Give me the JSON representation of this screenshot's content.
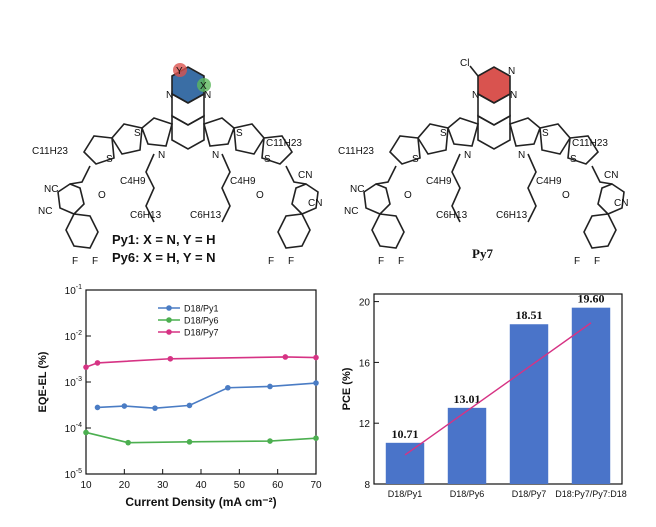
{
  "molecules": {
    "left": {
      "atoms": {
        "x": "X",
        "y": "Y",
        "n1": "N",
        "n2": "N",
        "n3": "N",
        "n4": "N",
        "s1": "S",
        "s2": "S",
        "s3": "S",
        "s4": "S",
        "c11h23_left": "C11H23",
        "c11h23_right": "C11H23",
        "c4h9_left": "C4H9",
        "c4h9_right": "C4H9",
        "c6h13_left": "C6H13",
        "c6h13_right": "C6H13",
        "nc_left_1": "NC",
        "nc_left_2": "NC",
        "cn_right_1": "CN",
        "cn_right_2": "CN",
        "o_left": "O",
        "o_right": "O",
        "f_left_1": "F",
        "f_left_2": "F",
        "f_right_1": "F",
        "f_right_2": "F"
      },
      "caption_line1": "Py1: X = N, Y = H",
      "caption_line2": "Py6: X = H, Y = N",
      "colors": {
        "ring": "#3a6ea5",
        "x_site": "#5cb85c",
        "y_site": "#d9534f"
      }
    },
    "right": {
      "atoms": {
        "cl": "Cl",
        "n_py": "N",
        "n1": "N",
        "n2": "N",
        "n3": "N",
        "n4": "N",
        "s1": "S",
        "s2": "S",
        "s3": "S",
        "s4": "S",
        "c11h23_left": "C11H23",
        "c11h23_right": "C11H23",
        "c4h9_left": "C4H9",
        "c4h9_right": "C4H9",
        "c6h13_left": "C6H13",
        "c6h13_right": "C6H13",
        "nc_left_1": "NC",
        "nc_left_2": "NC",
        "cn_right_1": "CN",
        "cn_right_2": "CN",
        "o_left": "O",
        "o_right": "O",
        "f_left_1": "F",
        "f_left_2": "F",
        "f_right_1": "F",
        "f_right_2": "F"
      },
      "caption": "Py7",
      "colors": {
        "ring": "#d9534f"
      }
    }
  },
  "chart_data": [
    {
      "type": "line",
      "xlabel": "Current Density (mA cm⁻²)",
      "ylabel": "EQE-EL (%)",
      "xlim": [
        10,
        70
      ],
      "ylim": [
        1e-05,
        0.1
      ],
      "y_scale": "log",
      "x_ticks": [
        "10",
        "20",
        "30",
        "40",
        "50",
        "60",
        "70"
      ],
      "y_ticks": [
        {
          "base": "10",
          "exp": "-1",
          "value": 0.1
        },
        {
          "base": "10",
          "exp": "-2",
          "value": 0.01
        },
        {
          "base": "10",
          "exp": "-3",
          "value": 0.001
        },
        {
          "base": "10",
          "exp": "-4",
          "value": 0.0001
        },
        {
          "base": "10",
          "exp": "-5",
          "value": 1e-05
        }
      ],
      "legend_position": "top-center",
      "series": [
        {
          "name": "D18/Py1",
          "color": "#4a7cc4",
          "x": [
            13,
            20,
            28,
            37,
            47,
            58,
            70
          ],
          "y": [
            0.00028,
            0.0003,
            0.00027,
            0.00031,
            0.00075,
            0.0008,
            0.00095
          ]
        },
        {
          "name": "D18/Py6",
          "color": "#4caf50",
          "x": [
            10,
            21,
            37,
            58,
            70
          ],
          "y": [
            8e-05,
            4.8e-05,
            5e-05,
            5.2e-05,
            6e-05
          ]
        },
        {
          "name": "D18/Py7",
          "color": "#d63384",
          "x": [
            10,
            13,
            32,
            62,
            70
          ],
          "y": [
            0.0021,
            0.0026,
            0.0032,
            0.0035,
            0.0034
          ]
        }
      ]
    },
    {
      "type": "bar",
      "ylabel": "PCE (%)",
      "ylim": [
        8,
        20.5
      ],
      "y_ticks": [
        "8",
        "12",
        "16",
        "20"
      ],
      "y_tick_values": [
        8,
        12,
        16,
        20
      ],
      "categories": [
        "D18/Py1",
        "D18/Py6",
        "D18/Py7",
        "D18:Py7/Py7:D18"
      ],
      "values": [
        10.71,
        13.01,
        18.51,
        19.6
      ],
      "value_labels": [
        "10.71",
        "13.01",
        "18.51",
        "19.60"
      ],
      "bar_color": "#4a74c9",
      "trend_color": "#d63384"
    }
  ]
}
